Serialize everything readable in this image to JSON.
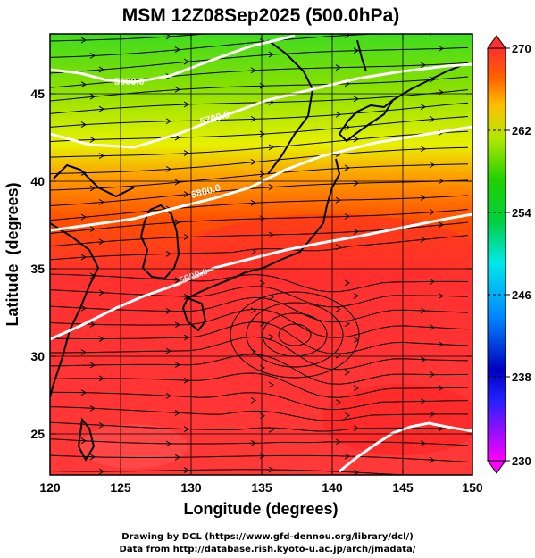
{
  "title": "MSM 12Z08Sep2025 (500.0hPa)",
  "axes": {
    "xlabel": "Longitude (degrees)",
    "ylabel": "Latitude  (degrees)",
    "xticks": [
      "120",
      "125",
      "130",
      "135",
      "140",
      "145",
      "150"
    ],
    "yticks": [
      "25",
      "30",
      "35",
      "40",
      "45"
    ],
    "xlim": [
      120,
      150
    ],
    "ylim": [
      22.4,
      47.6
    ]
  },
  "colorbar": {
    "ticks": [
      "270",
      "262",
      "254",
      "246",
      "238",
      "230"
    ],
    "range": [
      230,
      270
    ],
    "colors": [
      "#ff00ff",
      "#0000cc",
      "#0080ff",
      "#00e0ff",
      "#00d000",
      "#90e000",
      "#ffff00",
      "#ff8000",
      "#ff2000"
    ]
  },
  "contours": [
    {
      "label": "5600.0"
    },
    {
      "label": "5700.0"
    },
    {
      "label": "5800.0"
    },
    {
      "label": "5900.0"
    }
  ],
  "footer": {
    "line1": "Drawing by DCL (https://www.gfd-dennou.org/library/dcl/)",
    "line2": "Data from http://database.rish.kyoto-u.ac.jp/arch/jmadata/"
  }
}
